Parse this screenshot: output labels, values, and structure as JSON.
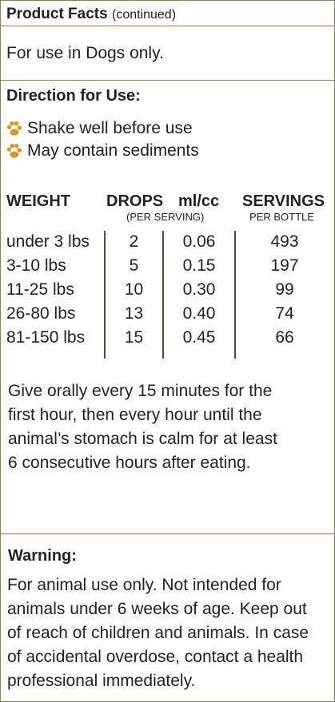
{
  "header": {
    "title": "Product Facts",
    "suffix": "(continued)"
  },
  "usage": "For use in Dogs only.",
  "directions": {
    "title": "Direction for Use:",
    "items": [
      "Shake well before use",
      "May contain sediments"
    ]
  },
  "table": {
    "headers": {
      "weight": "WEIGHT",
      "drops": "DROPS",
      "drops_sub": "(PER SERVING)",
      "ml": "ml/cc",
      "servings": "SERVINGS",
      "servings_sub": "PER BOTTLE"
    },
    "rows": [
      {
        "weight": "under 3 lbs",
        "drops": "2",
        "ml": "0.06",
        "servings": "493"
      },
      {
        "weight": "3-10 lbs",
        "drops": "5",
        "ml": "0.15",
        "servings": "197"
      },
      {
        "weight": "11-25 lbs",
        "drops": "10",
        "ml": "0.30",
        "servings": "99"
      },
      {
        "weight": "26-80 lbs",
        "drops": "13",
        "ml": "0.40",
        "servings": "74"
      },
      {
        "weight": "81-150 lbs",
        "drops": "15",
        "ml": "0.45",
        "servings": "66"
      }
    ]
  },
  "instructions": [
    "Give orally every 15 minutes for the",
    "first hour, then every hour until the",
    "animal’s stomach is calm for at least",
    "6 consecutive hours after eating."
  ],
  "warning": {
    "title": "Warning:",
    "lines": [
      "For animal use only. Not intended for",
      "animals under 6 weeks of age. Keep out",
      "of reach of children and animals. In case",
      "of accidental overdose, contact a health",
      "professional immediately."
    ]
  },
  "colors": {
    "border": "#8b7a66",
    "paw": "#d29a2e"
  }
}
